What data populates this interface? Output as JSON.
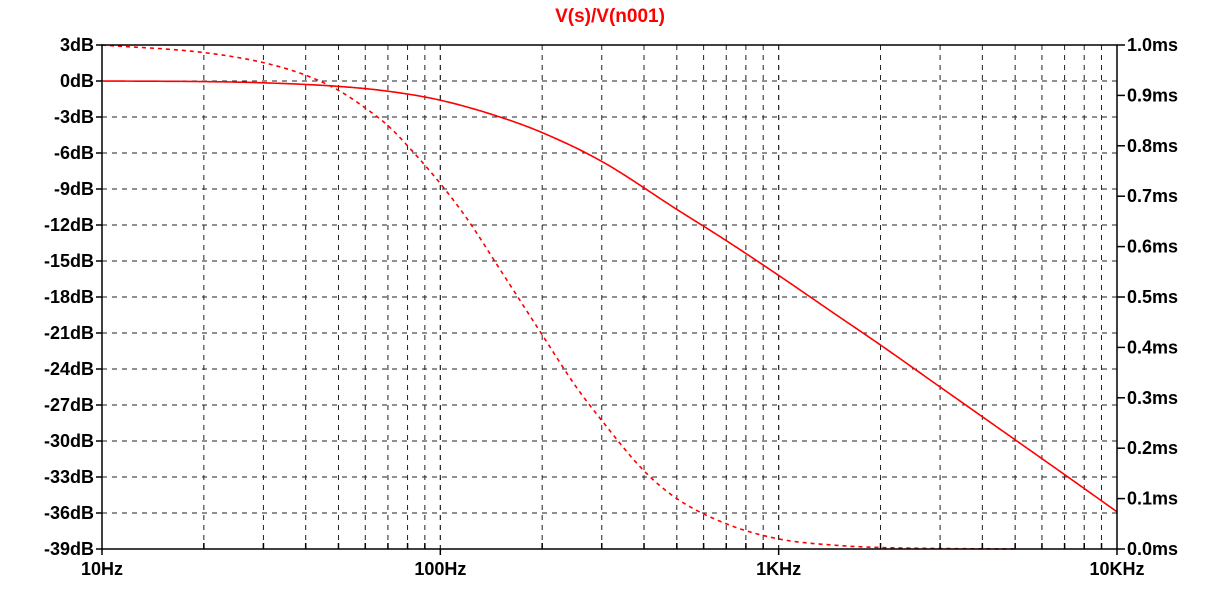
{
  "chart_data": {
    "type": "line",
    "title": "V(s)/V(n001)",
    "title_color": "#ff0000",
    "series_color": "#ff0000",
    "grid": true,
    "x_scale": "log",
    "xlim": [
      10,
      10000
    ],
    "ylim_left": [
      -39,
      3
    ],
    "ylim_right": [
      0.0,
      1.0
    ],
    "x_ticks": [
      {
        "value": 10,
        "label": "10Hz"
      },
      {
        "value": 100,
        "label": "100Hz"
      },
      {
        "value": 1000,
        "label": "1KHz"
      },
      {
        "value": 10000,
        "label": "10KHz"
      }
    ],
    "y_left_ticks": [
      {
        "value": 3,
        "label": "3dB"
      },
      {
        "value": 0,
        "label": "0dB"
      },
      {
        "value": -3,
        "label": "-3dB"
      },
      {
        "value": -6,
        "label": "-6dB"
      },
      {
        "value": -9,
        "label": "-9dB"
      },
      {
        "value": -12,
        "label": "-12dB"
      },
      {
        "value": -15,
        "label": "-15dB"
      },
      {
        "value": -18,
        "label": "-18dB"
      },
      {
        "value": -21,
        "label": "-21dB"
      },
      {
        "value": -24,
        "label": "-24dB"
      },
      {
        "value": -27,
        "label": "-27dB"
      },
      {
        "value": -30,
        "label": "-30dB"
      },
      {
        "value": -33,
        "label": "-33dB"
      },
      {
        "value": -36,
        "label": "-36dB"
      },
      {
        "value": -39,
        "label": "-39dB"
      }
    ],
    "y_right_ticks": [
      {
        "value": 1.0,
        "label": "1.0ms"
      },
      {
        "value": 0.9,
        "label": "0.9ms"
      },
      {
        "value": 0.8,
        "label": "0.8ms"
      },
      {
        "value": 0.7,
        "label": "0.7ms"
      },
      {
        "value": 0.6,
        "label": "0.6ms"
      },
      {
        "value": 0.5,
        "label": "0.5ms"
      },
      {
        "value": 0.4,
        "label": "0.4ms"
      },
      {
        "value": 0.3,
        "label": "0.3ms"
      },
      {
        "value": 0.2,
        "label": "0.2ms"
      },
      {
        "value": 0.1,
        "label": "0.1ms"
      },
      {
        "value": 0.0,
        "label": "0.0ms"
      }
    ],
    "series": [
      {
        "axis": "left",
        "style": "solid",
        "x": [
          10,
          20,
          30,
          50,
          70,
          100,
          150,
          200,
          300,
          500,
          700,
          1000,
          1500,
          2000,
          3000,
          5000,
          7000,
          10000
        ],
        "y": [
          0.0,
          -0.05,
          -0.15,
          -0.45,
          -0.85,
          -1.6,
          -3.0,
          -4.3,
          -6.7,
          -10.7,
          -13.3,
          -16.2,
          -19.6,
          -22.0,
          -25.5,
          -29.9,
          -32.8,
          -35.9
        ]
      },
      {
        "axis": "right",
        "style": "dashed",
        "x": [
          10,
          20,
          30,
          40,
          50,
          60,
          70,
          80,
          100,
          120,
          150,
          200,
          250,
          300,
          400,
          500,
          700,
          1000,
          1500,
          2000,
          3000,
          5000
        ],
        "y": [
          1.0,
          0.985,
          0.965,
          0.94,
          0.91,
          0.875,
          0.84,
          0.8,
          0.725,
          0.655,
          0.555,
          0.425,
          0.325,
          0.255,
          0.155,
          0.1,
          0.05,
          0.02,
          0.007,
          0.003,
          0.001,
          0.0
        ]
      }
    ]
  }
}
